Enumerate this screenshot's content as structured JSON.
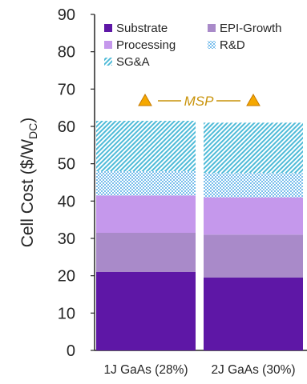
{
  "chart_data": {
    "type": "bar",
    "stacked": true,
    "categories": [
      "1J GaAs (28%)",
      "2J GaAs (30%)"
    ],
    "series": [
      {
        "name": "Substrate",
        "values": [
          21.0,
          19.5
        ],
        "color": "#5E17A6",
        "pattern": "solid"
      },
      {
        "name": "EPI-Growth",
        "values": [
          10.5,
          11.5
        ],
        "color": "#A98AC9",
        "pattern": "solid"
      },
      {
        "name": "Processing",
        "values": [
          10.0,
          10.0
        ],
        "color": "#C598EC",
        "pattern": "solid"
      },
      {
        "name": "R&D",
        "values": [
          6.5,
          6.5
        ],
        "color": "#79BEEB",
        "pattern": "crosshatch"
      },
      {
        "name": "SG&A",
        "values": [
          13.5,
          13.5
        ],
        "color": "#4FBBD8",
        "pattern": "diagonal"
      }
    ],
    "totals": [
      61.5,
      61.0
    ],
    "ylabel": "Cell Cost ($/W",
    "ylabel_subscript": "DC",
    "ylabel_suffix": ")",
    "ylim": [
      0,
      90
    ],
    "yticks": [
      0,
      10,
      20,
      30,
      40,
      50,
      60,
      70,
      80,
      90
    ],
    "grid": false,
    "legend_placement": "top-left",
    "annotation": {
      "text": "MSP",
      "color": "#C9930A",
      "marker": "triangle",
      "marker_color": "#F5A800"
    }
  }
}
